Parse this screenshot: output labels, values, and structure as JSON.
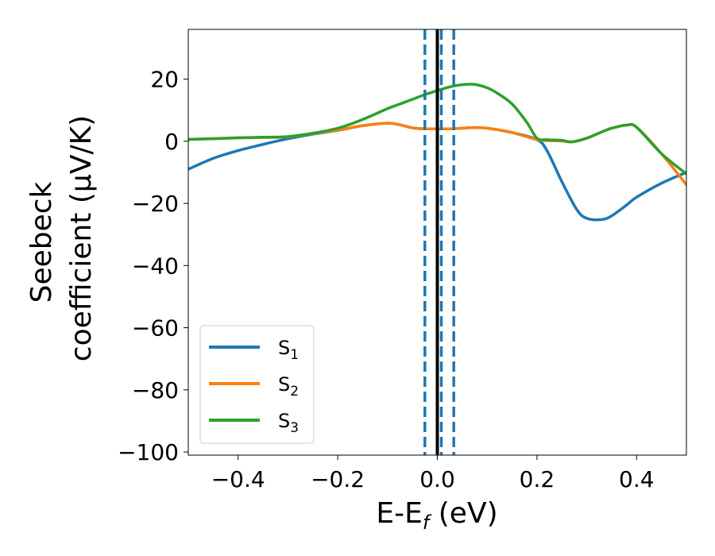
{
  "chart_data": {
    "type": "line",
    "xlabel": "E-E_f (eV)",
    "xlabel_parts": {
      "main": "E-E",
      "sub": "f",
      "tail": " (eV)"
    },
    "ylabel_line1": "Seebeck",
    "ylabel_line2": "coefficient  (μV/K)",
    "xlim": [
      -0.5,
      0.5
    ],
    "ylim": [
      -101,
      36
    ],
    "xticks": [
      -0.4,
      -0.2,
      0.0,
      0.2,
      0.4
    ],
    "xtick_labels": [
      "−0.4",
      "−0.2",
      "0.0",
      "0.2",
      "0.4"
    ],
    "yticks": [
      20,
      0,
      -20,
      -40,
      -60,
      -80,
      -100
    ],
    "ytick_labels": [
      "20",
      "0",
      "−20",
      "−40",
      "−60",
      "−80",
      "−100"
    ],
    "grid": false,
    "legend_position": "lower-left",
    "vlines": [
      {
        "x": 0.0,
        "style": "solid",
        "color": "#000000"
      },
      {
        "x": -0.025,
        "style": "dashed",
        "color": "#1f77b4"
      },
      {
        "x": 0.008,
        "style": "dashed",
        "color": "#1f77b4"
      },
      {
        "x": 0.033,
        "style": "dashed",
        "color": "#1f77b4"
      }
    ],
    "series": [
      {
        "name": "S1",
        "label_main": "S",
        "label_sub": "1",
        "color": "#1f77b4",
        "x": [
          -0.5,
          -0.45,
          -0.4,
          -0.35,
          -0.3,
          -0.25,
          -0.2,
          -0.15,
          -0.1,
          -0.075,
          -0.05,
          -0.025,
          0.0,
          0.025,
          0.05,
          0.075,
          0.1,
          0.15,
          0.2,
          0.22,
          0.25,
          0.28,
          0.3,
          0.33,
          0.35,
          0.38,
          0.4,
          0.45,
          0.5
        ],
        "y": [
          -9,
          -5.5,
          -3,
          -1,
          0.8,
          2.3,
          3.5,
          5,
          5.8,
          5.3,
          4.3,
          4,
          4,
          4,
          4.2,
          4.4,
          4.2,
          2.8,
          0.5,
          -3,
          -13,
          -22,
          -24.8,
          -25.2,
          -24,
          -20.5,
          -18,
          -13.5,
          -10
        ]
      },
      {
        "name": "S2",
        "label_main": "S",
        "label_sub": "2",
        "color": "#ff7f0e",
        "x": [
          -0.5,
          -0.45,
          -0.4,
          -0.35,
          -0.3,
          -0.25,
          -0.2,
          -0.15,
          -0.1,
          -0.075,
          -0.05,
          -0.025,
          0.0,
          0.025,
          0.05,
          0.075,
          0.1,
          0.15,
          0.2,
          0.22,
          0.25,
          0.27,
          0.3,
          0.33,
          0.35,
          0.38,
          0.4,
          0.45,
          0.5
        ],
        "y": [
          0.6,
          0.9,
          1.1,
          1.2,
          1.4,
          2.5,
          3.6,
          5,
          5.8,
          5.3,
          4.3,
          4,
          4,
          4,
          4.2,
          4.4,
          4.2,
          2.8,
          0.5,
          0.2,
          0.1,
          -0.2,
          1,
          3,
          4.2,
          5.2,
          4.5,
          -4,
          -14
        ]
      },
      {
        "name": "S3",
        "label_main": "S",
        "label_sub": "3",
        "color": "#2ca02c",
        "x": [
          -0.5,
          -0.45,
          -0.4,
          -0.35,
          -0.3,
          -0.25,
          -0.2,
          -0.15,
          -0.1,
          -0.075,
          -0.05,
          -0.025,
          0.0,
          0.025,
          0.05,
          0.075,
          0.1,
          0.12,
          0.15,
          0.18,
          0.2,
          0.22,
          0.25,
          0.27,
          0.3,
          0.33,
          0.35,
          0.38,
          0.4,
          0.45,
          0.5
        ],
        "y": [
          0.6,
          0.8,
          1.1,
          1.3,
          1.5,
          2.6,
          4.2,
          7,
          10.5,
          12,
          13.5,
          15,
          16.3,
          17.5,
          18.2,
          18.3,
          17.2,
          15.5,
          12,
          6,
          1,
          0.5,
          0.3,
          -0.2,
          1,
          3,
          4.2,
          5.2,
          4.5,
          -4,
          -10.5
        ]
      }
    ]
  }
}
